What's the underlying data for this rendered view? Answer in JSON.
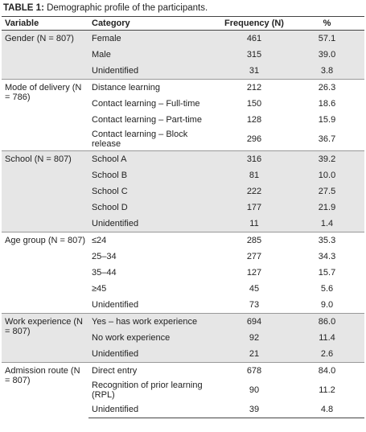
{
  "title": {
    "label": "TABLE 1:",
    "text": "Demographic profile of the participants."
  },
  "header": [
    "Variable",
    "Category",
    "Frequency (N)",
    "%"
  ],
  "groups": [
    {
      "variable": "Gender (N = 807)",
      "rows": [
        [
          "Female",
          "461",
          "57.1"
        ],
        [
          "Male",
          "315",
          "39.0"
        ],
        [
          "Unidentified",
          "31",
          "3.8"
        ]
      ]
    },
    {
      "variable": "Mode of delivery (N = 786)",
      "rows": [
        [
          "Distance learning",
          "212",
          "26.3"
        ],
        [
          "Contact learning – Full-time",
          "150",
          "18.6"
        ],
        [
          "Contact learning – Part-time",
          "128",
          "15.9"
        ],
        [
          "Contact learning – Block release",
          "296",
          "36.7"
        ]
      ]
    },
    {
      "variable": "School (N = 807)",
      "rows": [
        [
          "School A",
          "316",
          "39.2"
        ],
        [
          "School B",
          "81",
          "10.0"
        ],
        [
          "School C",
          "222",
          "27.5"
        ],
        [
          "School D",
          "177",
          "21.9"
        ],
        [
          "Unidentified",
          "11",
          "1.4"
        ]
      ]
    },
    {
      "variable": "Age group (N = 807)",
      "rows": [
        [
          "≤24",
          "285",
          "35.3"
        ],
        [
          "25–34",
          "277",
          "34.3"
        ],
        [
          "35–44",
          "127",
          "15.7"
        ],
        [
          "≥45",
          "45",
          "5.6"
        ],
        [
          "Unidentified",
          "73",
          "9.0"
        ]
      ]
    },
    {
      "variable": "Work experience (N = 807)",
      "rows": [
        [
          "Yes – has work experience",
          "694",
          "86.0"
        ],
        [
          "No work experience",
          "92",
          "11.4"
        ],
        [
          "Unidentified",
          "21",
          "2.6"
        ]
      ]
    },
    {
      "variable": "Admission route (N = 807)",
      "rows": [
        [
          "Direct entry",
          "678",
          "84.0"
        ],
        [
          "Recognition of prior learning (RPL)",
          "90",
          "11.2"
        ],
        [
          "Unidentified",
          "39",
          "4.8"
        ]
      ]
    }
  ]
}
